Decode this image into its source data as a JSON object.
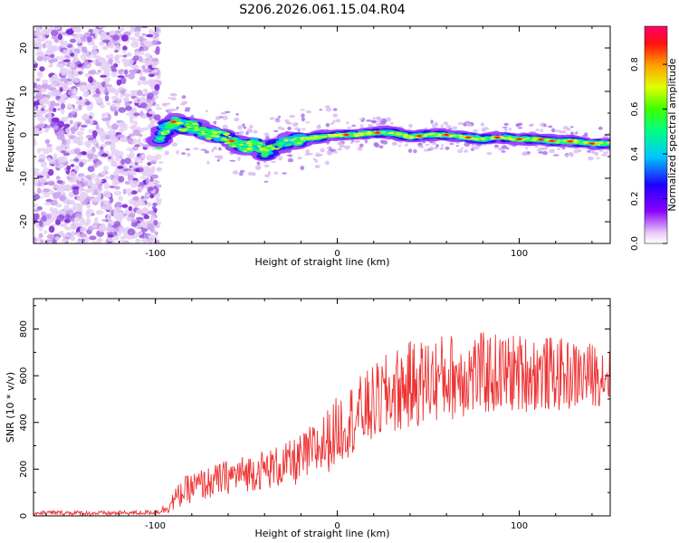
{
  "title": "S206.2026.061.15.04.R04",
  "chart_data": [
    {
      "type": "heatmap",
      "panel": "top",
      "xlabel": "Height of straight line (km)",
      "ylabel": "Frequency (Hz)",
      "xlim": [
        -167,
        150
      ],
      "ylim": [
        -25,
        25
      ],
      "xticks": [
        -100,
        0,
        100
      ],
      "xtick_labels": [
        "-100",
        "0",
        "100"
      ],
      "yticks": [
        -20,
        -10,
        0,
        10,
        20
      ],
      "ytick_labels": [
        "-20",
        "-10",
        "0",
        "10",
        "20"
      ],
      "colorbar": {
        "label": "Normalized spectral amplitude",
        "range": [
          0,
          0.97
        ],
        "ticks": [
          0,
          0.2,
          0.4,
          0.6,
          0.8
        ],
        "tick_labels": [
          "0.0",
          "0.2",
          "0.4",
          "0.6",
          "0.8"
        ],
        "colormap": "rainbow (white-violet-blue-cyan-green-yellow-orange-red-magenta)"
      },
      "signal_track": {
        "description": "frequency of main spectral ridge vs height",
        "heights_km": [
          -98,
          -95,
          -90,
          -85,
          -80,
          -75,
          -70,
          -65,
          -60,
          -55,
          -50,
          -45,
          -40,
          -35,
          -30,
          -25,
          -20,
          -10,
          0,
          10,
          20,
          30,
          40,
          50,
          60,
          70,
          80,
          90,
          100,
          110,
          120,
          130,
          140,
          148
        ],
        "frequency_hz": [
          -2,
          1,
          3,
          2,
          2,
          1,
          0,
          0,
          -1,
          -2,
          -3,
          -2,
          -4,
          -3,
          -2,
          -1.5,
          -1,
          -0.5,
          0,
          0,
          0.5,
          0.5,
          -0.5,
          0,
          0,
          -0.5,
          -1,
          -0.5,
          -1,
          -1,
          -1.5,
          -1.5,
          -2,
          -2
        ]
      },
      "noise_region_km": [
        -167,
        -98
      ]
    },
    {
      "type": "line",
      "panel": "bottom",
      "xlabel": "Height of straight line (km)",
      "ylabel": "SNR (10 * v/v)",
      "xlim": [
        -167,
        150
      ],
      "ylim": [
        0,
        930
      ],
      "xticks": [
        -100,
        0,
        100
      ],
      "xtick_labels": [
        "-100",
        "0",
        "100"
      ],
      "yticks": [
        0,
        200,
        400,
        600,
        800
      ],
      "ytick_labels": [
        "0",
        "200",
        "400",
        "600",
        "800"
      ],
      "color": "#ee3333",
      "series": [
        {
          "name": "SNR",
          "x": [
            -167,
            -150,
            -130,
            -110,
            -100,
            -95,
            -90,
            -85,
            -80,
            -75,
            -70,
            -60,
            -50,
            -40,
            -30,
            -25,
            -20,
            -15,
            -10,
            -5,
            0,
            5,
            10,
            20,
            30,
            40,
            50,
            60,
            70,
            80,
            90,
            100,
            110,
            120,
            130,
            140,
            150
          ],
          "baseline": [
            12,
            12,
            10,
            12,
            15,
            25,
            60,
            95,
            115,
            125,
            135,
            160,
            175,
            190,
            205,
            215,
            230,
            255,
            280,
            310,
            350,
            385,
            410,
            460,
            510,
            540,
            560,
            575,
            585,
            590,
            590,
            595,
            595,
            590,
            585,
            590,
            595
          ],
          "spread": [
            10,
            10,
            10,
            10,
            10,
            20,
            45,
            60,
            65,
            70,
            70,
            75,
            80,
            85,
            95,
            100,
            110,
            120,
            130,
            140,
            150,
            155,
            160,
            170,
            185,
            190,
            190,
            190,
            185,
            180,
            175,
            170,
            165,
            160,
            150,
            140,
            130
          ]
        }
      ]
    }
  ]
}
